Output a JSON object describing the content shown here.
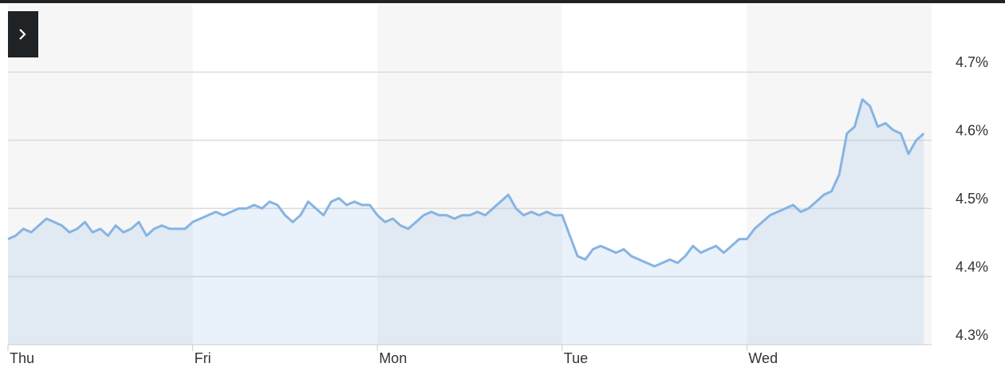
{
  "chart_data": {
    "type": "line",
    "categories": [
      "Thu",
      "Fri",
      "Mon",
      "Tue",
      "Wed"
    ],
    "series": [
      {
        "color": "#86b4e3",
        "values": [
          [
            4.455,
            4.46,
            4.47,
            4.465,
            4.475,
            4.485,
            4.48,
            4.475,
            4.465,
            4.47,
            4.48,
            4.465,
            4.47,
            4.46,
            4.475,
            4.465,
            4.47,
            4.48,
            4.46,
            4.47,
            4.475,
            4.47,
            4.47,
            4.47
          ],
          [
            4.48,
            4.485,
            4.49,
            4.495,
            4.49,
            4.495,
            4.5,
            4.5,
            4.505,
            4.5,
            4.51,
            4.505,
            4.49,
            4.48,
            4.49,
            4.51,
            4.5,
            4.49,
            4.51,
            4.515,
            4.505,
            4.51,
            4.505,
            4.505
          ],
          [
            4.49,
            4.48,
            4.485,
            4.475,
            4.47,
            4.48,
            4.49,
            4.495,
            4.49,
            4.49,
            4.485,
            4.49,
            4.49,
            4.495,
            4.49,
            4.5,
            4.51,
            4.52,
            4.5,
            4.49,
            4.495,
            4.49,
            4.495,
            4.49
          ],
          [
            4.49,
            4.46,
            4.43,
            4.425,
            4.44,
            4.445,
            4.44,
            4.435,
            4.44,
            4.43,
            4.425,
            4.42,
            4.415,
            4.42,
            4.425,
            4.42,
            4.43,
            4.445,
            4.435,
            4.44,
            4.445,
            4.435,
            4.445,
            4.455
          ],
          [
            4.455,
            4.47,
            4.48,
            4.49,
            4.495,
            4.5,
            4.505,
            4.495,
            4.5,
            4.51,
            4.52,
            4.525,
            4.55,
            4.61,
            4.62,
            4.66,
            4.65,
            4.62,
            4.625,
            4.615,
            4.61,
            4.58,
            4.6,
            4.61
          ]
        ]
      }
    ],
    "ylim": [
      4.3,
      4.8
    ],
    "yticks": [
      {
        "value": 4.3,
        "label": "4.3%"
      },
      {
        "value": 4.4,
        "label": "4.4%"
      },
      {
        "value": 4.5,
        "label": "4.5%"
      },
      {
        "value": 4.6,
        "label": "4.6%"
      },
      {
        "value": 4.7,
        "label": "4.7%"
      }
    ],
    "grid": true
  }
}
